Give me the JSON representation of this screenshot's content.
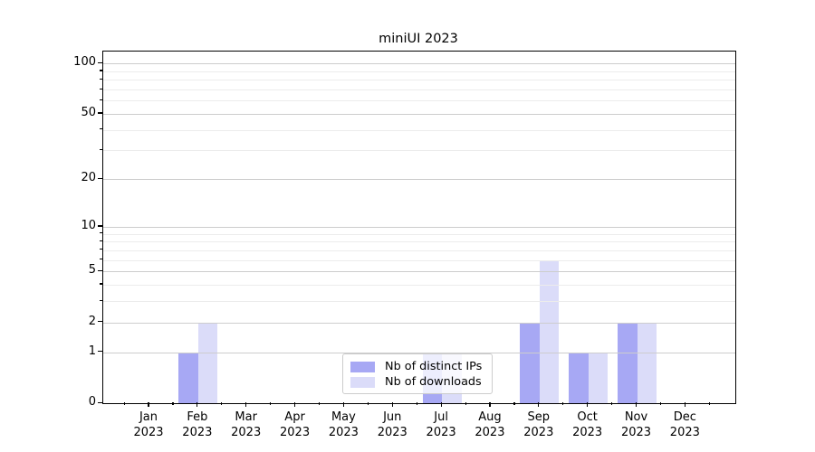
{
  "title": "miniUI 2023",
  "legend": {
    "entries": [
      {
        "label": "Nb of distinct IPs",
        "color": "#a7a8f4"
      },
      {
        "label": "Nb of downloads",
        "color": "#dbdcf9"
      }
    ]
  },
  "chart_data": {
    "type": "bar",
    "title": "miniUI 2023",
    "categories": [
      "Jan 2023",
      "Feb 2023",
      "Mar 2023",
      "Apr 2023",
      "May 2023",
      "Jun 2023",
      "Jul 2023",
      "Aug 2023",
      "Sep 2023",
      "Oct 2023",
      "Nov 2023",
      "Dec 2023"
    ],
    "x_tick_months": [
      "Jan",
      "Feb",
      "Mar",
      "Apr",
      "May",
      "Jun",
      "Jul",
      "Aug",
      "Sep",
      "Oct",
      "Nov",
      "Dec"
    ],
    "x_tick_year": "2023",
    "series": [
      {
        "name": "Nb of distinct IPs",
        "color": "#a7a8f4",
        "values": [
          0,
          1,
          0,
          0,
          0,
          0,
          1,
          0,
          2,
          1,
          2,
          0
        ]
      },
      {
        "name": "Nb of downloads",
        "color": "#dbdcf9",
        "values": [
          0,
          2,
          0,
          0,
          0,
          0,
          1,
          0,
          6,
          1,
          2,
          0
        ]
      }
    ],
    "xlabel": "",
    "ylabel": "",
    "y_scale": "log1p",
    "ylim": [
      0,
      118
    ],
    "y_major_ticks": [
      0,
      1,
      2,
      5,
      10,
      20,
      50,
      100
    ],
    "y_minor_ticks": [
      3,
      4,
      6,
      7,
      8,
      9,
      30,
      40,
      60,
      70,
      80,
      90
    ],
    "grid": true,
    "legend_position": "inside lower center"
  },
  "colors": {
    "grid_major": "#cdcdcd",
    "grid_minor": "#ececec",
    "spine": "#000000",
    "text": "#000000",
    "legend_border": "#cccccc"
  }
}
